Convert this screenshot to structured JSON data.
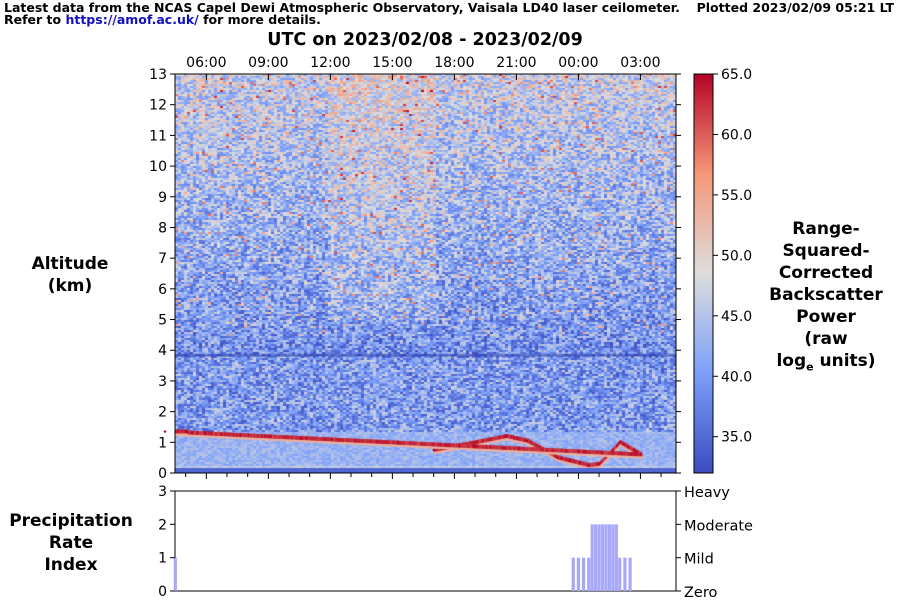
{
  "header": {
    "line1": "Latest data from the NCAS Capel Dewi Atmospheric Observatory, Vaisala LD40 laser ceilometer.",
    "line2_prefix": "Refer to ",
    "link_text": "https://amof.ac.uk/",
    "line2_suffix": " for more details.",
    "plotted": "Plotted 2023/02/09 05:21 LT"
  },
  "title": "UTC on 2023/02/08 - 2023/02/09",
  "colors": {
    "link": "#1010c0",
    "precip_bars": "#a8a8f8",
    "low": "#3b4cc0",
    "mid": "#dddddd",
    "high": "#b40426"
  },
  "chart_data": [
    {
      "type": "heatmap",
      "name": "backscatter",
      "x_tick_labels": [
        "06:00",
        "09:00",
        "12:00",
        "15:00",
        "18:00",
        "21:00",
        "00:00",
        "03:00"
      ],
      "ylabel_lines": [
        "Altitude",
        "(km)"
      ],
      "y_ticks": [
        0,
        1,
        2,
        3,
        4,
        5,
        6,
        7,
        8,
        9,
        10,
        11,
        12,
        13
      ],
      "ylim": [
        0,
        13
      ],
      "colorbar": {
        "ticks": [
          "35.0",
          "40.0",
          "45.0",
          "50.0",
          "55.0",
          "60.0",
          "65.0"
        ],
        "range": [
          32.0,
          65.0
        ],
        "colormap": "coolwarm",
        "label_lines": [
          "Range-",
          "Squared-",
          "Corrected",
          "Backscatter",
          "Power",
          "(raw"
        ],
        "label_last": "log",
        "label_last_sub": "e",
        "label_last_suffix": " units)"
      },
      "cloud_base_layer_km": [
        {
          "t": "17:00",
          "km": 0.75
        },
        {
          "t": "19:00",
          "km": 1.0
        },
        {
          "t": "20:30",
          "km": 1.2
        },
        {
          "t": "21:30",
          "km": 1.05
        },
        {
          "t": "23:00",
          "km": 0.5
        },
        {
          "t": "00:30",
          "km": 0.25
        },
        {
          "t": "01:00",
          "km": 0.3
        },
        {
          "t": "02:00",
          "km": 1.0
        },
        {
          "t": "03:00",
          "km": 0.6
        },
        {
          "t": "04:00",
          "km": 1.35
        },
        {
          "t": "05:00",
          "km": 1.35
        }
      ],
      "noise_step_km": 3.85
    },
    {
      "type": "bar",
      "name": "precipitation",
      "ylabel_lines": [
        "Precipitation",
        "Rate",
        "Index"
      ],
      "y_ticks": [
        0,
        1,
        2,
        3
      ],
      "ylim": [
        0,
        3
      ],
      "right_labels": [
        "Zero",
        "Mild",
        "Moderate",
        "Heavy"
      ],
      "series": [
        {
          "x": [
            "23:45",
            "00:00",
            "00:15",
            "00:30",
            "00:40",
            "00:50",
            "01:00",
            "01:10",
            "01:20",
            "01:30",
            "01:40",
            "01:50",
            "02:00",
            "02:15",
            "02:30",
            "02:45",
            "04:30"
          ],
          "values": [
            1,
            1,
            1,
            1,
            2,
            2,
            2,
            2,
            2,
            2,
            2,
            2,
            1,
            1,
            1,
            0,
            1
          ]
        }
      ]
    }
  ]
}
